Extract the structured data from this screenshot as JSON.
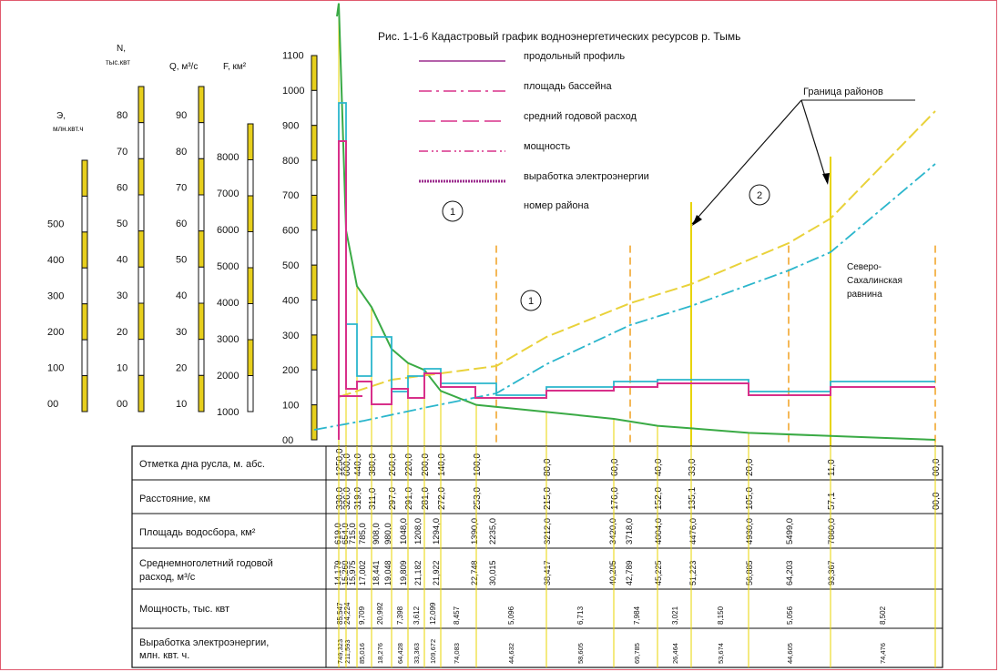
{
  "colors": {
    "profile": "#9c2d8e",
    "area": "#d8308a",
    "discharge": "#2bb6cc",
    "power": "#e9d23a",
    "energy": "#3aaa45",
    "district_line": "#e8d400",
    "district_dash": "#f0a020",
    "frame": "#e05a6e"
  },
  "chart_data": {
    "type": "line",
    "title": "Рис. 1-1-6 Кадастровый график водноэнергетических ресурсов р. Тымь",
    "x": [
      330,
      326,
      319,
      311,
      297,
      291,
      281,
      272,
      253,
      215,
      176,
      152,
      135.1,
      105,
      57.1,
      0
    ],
    "x_label_stations": [
      "330,0",
      "326,0",
      "319,0",
      "311,0",
      "297,0",
      "291,0",
      "281,0",
      "272,0",
      "253,0",
      "215,0",
      "176,0",
      "152,0",
      "135,1",
      "105,0",
      "57,1",
      "00,0"
    ],
    "elevation_stations": [
      "1250,0",
      "600,0",
      "440,0",
      "380,0",
      "260,0",
      "220,0",
      "200,0",
      "140,0",
      "100,0",
      "80,0",
      "60,0",
      "40,0",
      "33,0",
      "20,0",
      "11,0",
      "00,0"
    ],
    "basin_area": [
      "619,0",
      "654,0",
      "715,0",
      "785,0",
      "908,0",
      "980,0",
      "1048,0",
      "1208,0",
      "1294,0",
      "1390,0",
      "2235,0",
      "3212,0",
      "3420,0",
      "3718,0",
      "4004,0",
      "4476,0",
      "4930,0",
      "5499,0",
      "7860,0"
    ],
    "discharge": [
      "14,179",
      "15,260",
      "15,975",
      "17,002",
      "18,441",
      "19,048",
      "19,809",
      "21,182",
      "21,922",
      "22,748",
      "30,015",
      "38,417",
      "40,205",
      "42,789",
      "45,225",
      "51,223",
      "56,885",
      "64,203",
      "93,367"
    ],
    "power": [
      "85,547",
      "24,224",
      "9,709",
      "20,992",
      "7,398",
      "3,612",
      "12,099",
      "8,457",
      "5,096",
      "6,713",
      "7,984",
      "3,021",
      "8,150",
      "5,056",
      "8,502"
    ],
    "energy": [
      "749,323",
      "211,593",
      "85,016",
      "18,276",
      "64,428",
      "33,363",
      "109,672",
      "74,083",
      "44,632",
      "58,605",
      "69,785",
      "26,464",
      "53,674",
      "44,605",
      "74,476"
    ],
    "axes": {
      "E": {
        "label": "Э, млн.квт.ч",
        "ticks": [
          "00",
          "100",
          "200",
          "300",
          "400",
          "500"
        ]
      },
      "N": {
        "label": "N, тыс.квт",
        "ticks": [
          "00",
          "10",
          "20",
          "30",
          "40",
          "50",
          "60",
          "70",
          "80"
        ]
      },
      "Q": {
        "label": "Q, м³/с",
        "ticks": [
          "10",
          "20",
          "30",
          "40",
          "50",
          "60",
          "70",
          "80",
          "90"
        ]
      },
      "F": {
        "label": "F, км²",
        "ticks": [
          "1000",
          "2000",
          "3000",
          "4000",
          "5000",
          "6000",
          "7000",
          "8000"
        ]
      },
      "H": {
        "ticks": [
          "00",
          "100",
          "200",
          "300",
          "400",
          "500",
          "600",
          "700",
          "800",
          "900",
          "1000",
          "1100"
        ],
        "ylim": [
          0,
          1100
        ]
      }
    },
    "series": [
      {
        "name": "продольный профиль",
        "values": [
          1250,
          600,
          440,
          380,
          260,
          220,
          200,
          140,
          100,
          80,
          60,
          40,
          33,
          20,
          11,
          0
        ]
      }
    ],
    "legend": [
      {
        "key": "profile",
        "label": "продольный профиль"
      },
      {
        "key": "area",
        "label": "площадь бассейна"
      },
      {
        "key": "discharge",
        "label": "средний годовой расход"
      },
      {
        "key": "power",
        "label": "мощность"
      },
      {
        "key": "energy",
        "label": "выработка электроэнергии"
      },
      {
        "key": "district",
        "label": "номер района"
      }
    ],
    "annotations": {
      "border": "Граница районов",
      "district1": "1",
      "district2": "2",
      "region": "Северо- Сахалинская равнина"
    },
    "table_rows": [
      "Отметка дна русла, м. абс.",
      "Расстояние, км",
      "Площадь водосбора, км²",
      "Среднемноголетний годовой расход, м³/с",
      "Мощность, тыс. квт",
      "Выработка электроэнергии, млн. квт. ч."
    ]
  }
}
